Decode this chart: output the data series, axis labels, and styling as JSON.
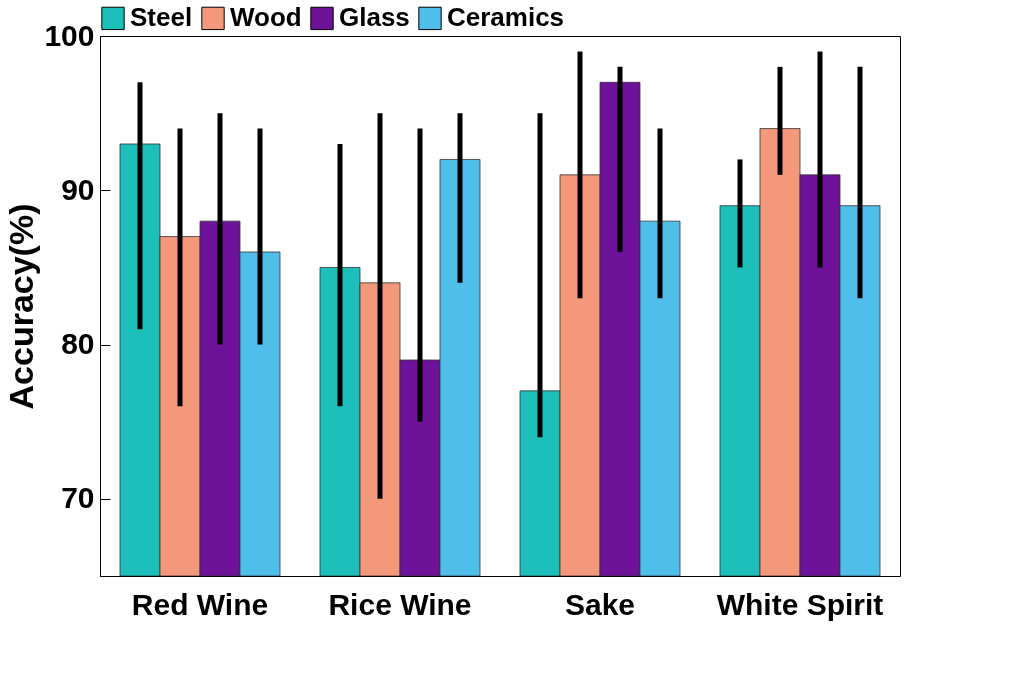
{
  "chart_data": {
    "type": "bar",
    "ylabel": "Accuracy(%)",
    "categories": [
      "Red Wine",
      "Rice Wine",
      "Sake",
      "White Spirit"
    ],
    "ylim": [
      65,
      100
    ],
    "yticks": [
      70,
      80,
      90,
      100
    ],
    "legend": "top",
    "series": [
      {
        "name": "Steel",
        "color": "#1cbfb9",
        "values": [
          93,
          85,
          77,
          89
        ],
        "errors": [
          [
            81,
            97
          ],
          [
            76,
            93
          ],
          [
            74,
            95
          ],
          [
            85,
            92
          ]
        ]
      },
      {
        "name": "Wood",
        "color": "#f4987c",
        "values": [
          87,
          84,
          91,
          94
        ],
        "errors": [
          [
            76,
            94
          ],
          [
            70,
            95
          ],
          [
            83,
            99
          ],
          [
            91,
            98
          ]
        ]
      },
      {
        "name": "Glass",
        "color": "#6e1299",
        "values": [
          88,
          79,
          97,
          91
        ],
        "errors": [
          [
            80,
            95
          ],
          [
            75,
            94
          ],
          [
            86,
            98
          ],
          [
            85,
            99
          ]
        ]
      },
      {
        "name": "Ceramics",
        "color": "#4fbeeb",
        "values": [
          86,
          92,
          88,
          89
        ],
        "errors": [
          [
            80,
            94
          ],
          [
            84,
            95
          ],
          [
            83,
            94
          ],
          [
            83,
            98
          ]
        ]
      }
    ]
  }
}
